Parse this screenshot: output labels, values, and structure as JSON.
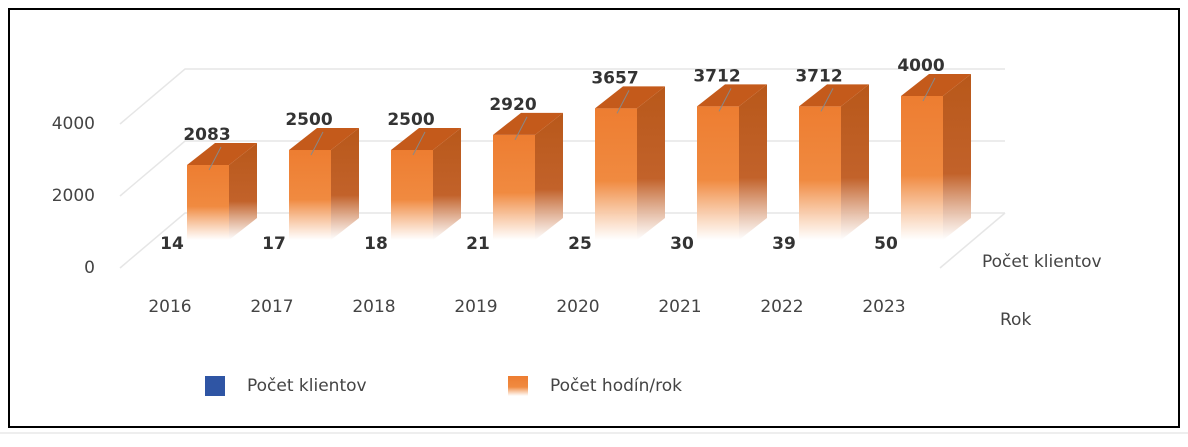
{
  "chart_data": {
    "type": "bar3d",
    "categories": [
      "2016",
      "2017",
      "2018",
      "2019",
      "2020",
      "2021",
      "2022",
      "2023"
    ],
    "series": [
      {
        "name": "Počet klientov",
        "color": "#2f55a4",
        "values": [
          14,
          17,
          18,
          21,
          25,
          30,
          39,
          50
        ]
      },
      {
        "name": "Počet hodín/rok",
        "color": "#ed7d31",
        "values": [
          2083,
          2500,
          2500,
          2920,
          3657,
          3712,
          3712,
          4000
        ]
      }
    ],
    "ylim": [
      0,
      5000
    ],
    "yticks": [
      0,
      2000,
      4000
    ],
    "grid": true,
    "x_label": "Rok",
    "depth_label": "Počet klientov"
  }
}
